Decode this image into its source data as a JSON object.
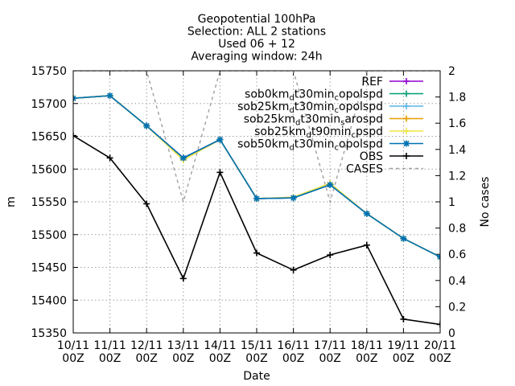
{
  "chart_data": {
    "type": "line",
    "title_lines": [
      "Geopotential 100hPa",
      "Selection: ALL       2 stations",
      "Used 06 + 12",
      "Averaging window: 24h"
    ],
    "xlabel": "Date",
    "ylabel": "m",
    "y2label": "No cases",
    "ylim": [
      15350,
      15750
    ],
    "y2lim": [
      0,
      2
    ],
    "yticks": [
      15350,
      15400,
      15450,
      15500,
      15550,
      15600,
      15650,
      15700,
      15750
    ],
    "y2ticks": [
      "0",
      "0.2",
      "0.4",
      "0.6",
      "0.8",
      "1",
      "1.2",
      "1.4",
      "1.6",
      "1.8",
      "2"
    ],
    "categories": [
      [
        "10/11",
        "00Z"
      ],
      [
        "11/11",
        "00Z"
      ],
      [
        "12/11",
        "00Z"
      ],
      [
        "13/11",
        "00Z"
      ],
      [
        "14/11",
        "00Z"
      ],
      [
        "15/11",
        "00Z"
      ],
      [
        "16/11",
        "00Z"
      ],
      [
        "17/11",
        "00Z"
      ],
      [
        "18/11",
        "00Z"
      ],
      [
        "19/11",
        "00Z"
      ],
      [
        "20/11",
        "00Z"
      ]
    ],
    "grid": true,
    "legend_position": "top-right",
    "series": [
      {
        "name": "REF",
        "color": "#9400d3",
        "marker": "plus",
        "axis": "y",
        "values": [
          15708,
          15712,
          15666,
          15617,
          15645,
          15555,
          15556,
          15576,
          15532,
          15494,
          15466
        ]
      },
      {
        "name": "sob0km_d t30min_c opolspd",
        "color": "#009e73",
        "marker": "plus",
        "axis": "y",
        "values": [
          15708,
          15712,
          15666,
          15616,
          15645,
          15555,
          15556,
          15576,
          15532,
          15494,
          15466
        ]
      },
      {
        "name": "sob25km_d t30min_c opolspd",
        "color": "#56b4e9",
        "marker": "plus",
        "axis": "y",
        "values": [
          15708,
          15712,
          15666,
          15616,
          15645,
          15555,
          15556,
          15576,
          15532,
          15494,
          15466
        ]
      },
      {
        "name": "sob25km_d t30min_s arospd",
        "color": "#e69f00",
        "marker": "plus",
        "axis": "y",
        "values": [
          15708,
          15712,
          15666,
          15614,
          15645,
          15555,
          15557,
          15578,
          15532,
          15494,
          15466
        ]
      },
      {
        "name": "sob25km_d t90min_c pspd",
        "color": "#f0e442",
        "marker": "plus",
        "axis": "y",
        "values": [
          15708,
          15712,
          15666,
          15614,
          15645,
          15555,
          15557,
          15578,
          15532,
          15494,
          15466
        ]
      },
      {
        "name": "sob50km_d t30min_c opolspd",
        "color": "#0072b2",
        "marker": "star",
        "axis": "y",
        "values": [
          15708,
          15712,
          15666,
          15617,
          15645,
          15555,
          15556,
          15576,
          15532,
          15494,
          15466
        ]
      },
      {
        "name": "OBS",
        "color": "#000000",
        "marker": "plus",
        "axis": "y",
        "values": [
          15651,
          15617,
          15547,
          15433,
          15595,
          15472,
          15446,
          15469,
          15484,
          15371,
          15363
        ]
      },
      {
        "name": "CASES",
        "color": "#a0a0a0",
        "marker": "none",
        "dashed": true,
        "axis": "y2",
        "values": [
          2,
          2,
          2,
          1,
          2,
          2,
          2,
          1,
          2,
          2,
          2
        ]
      }
    ]
  }
}
